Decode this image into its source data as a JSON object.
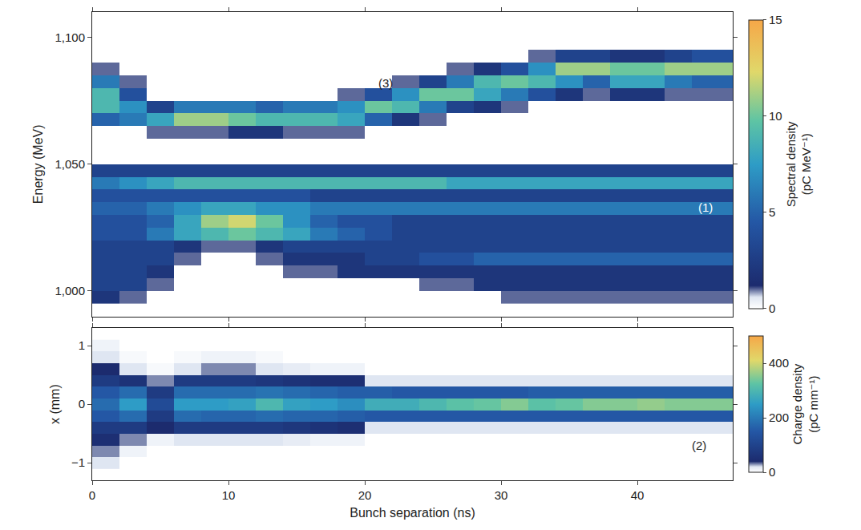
{
  "chart_data": [
    {
      "type": "heatmap",
      "y_label": "Energy (MeV)",
      "z_label": "Spectral density (pC MeV⁻¹)",
      "tick_labels": "y",
      "grid": false,
      "xlim": [
        0,
        47
      ],
      "xticks": [
        0,
        10,
        20,
        30,
        40
      ],
      "ylim": [
        990,
        1110
      ],
      "yticks": [
        {
          "value": 1000,
          "label": "1,000"
        },
        {
          "value": 1050,
          "label": "1,050"
        },
        {
          "value": 1100,
          "label": "1,100"
        }
      ],
      "zlim": [
        0,
        15
      ],
      "zticks": [
        0,
        5,
        10,
        15
      ],
      "x": [
        1,
        3,
        5,
        7,
        9,
        11,
        13,
        15,
        17,
        19,
        21,
        23,
        25,
        27,
        29,
        31,
        33,
        35,
        37,
        39,
        41,
        43,
        45,
        47
      ],
      "y": [
        997.5,
        1002.5,
        1007.5,
        1012.5,
        1017.5,
        1022.5,
        1027.5,
        1032.5,
        1037.5,
        1042.5,
        1047.5,
        1052.5,
        1057.5,
        1062.5,
        1067.5,
        1072.5,
        1077.5,
        1082.5,
        1087.5,
        1092.5,
        1097.5
      ],
      "z": [
        [
          2,
          1,
          0,
          0,
          0,
          0,
          0,
          0,
          0,
          0,
          0,
          0,
          0,
          0,
          0,
          1,
          1,
          1,
          1,
          1,
          1,
          1,
          1,
          1
        ],
        [
          3,
          3,
          1,
          0,
          0,
          0,
          0,
          0,
          0,
          0,
          0,
          0,
          1,
          1,
          2,
          2,
          2,
          2,
          2,
          2,
          2,
          2,
          2,
          2
        ],
        [
          3,
          3,
          2,
          0,
          0,
          0,
          0,
          1,
          1,
          2,
          2,
          2,
          2,
          2,
          2,
          2,
          2,
          2,
          2,
          2,
          2,
          2,
          2,
          2
        ],
        [
          3,
          3,
          3,
          1,
          0,
          0,
          1,
          2,
          2,
          2,
          3,
          3,
          4,
          4,
          5,
          5,
          5,
          5,
          5,
          5,
          5,
          5,
          5,
          5
        ],
        [
          3,
          3,
          3,
          2,
          1,
          1,
          2,
          3,
          3,
          3,
          3,
          3,
          3,
          3,
          3,
          3,
          3,
          3,
          3,
          3,
          3,
          3,
          3,
          3
        ],
        [
          4,
          4,
          6,
          8,
          9,
          10,
          9,
          8,
          6,
          5,
          4,
          3,
          3,
          3,
          3,
          3,
          3,
          3,
          3,
          3,
          3,
          3,
          3,
          3
        ],
        [
          4,
          4,
          5,
          8,
          11,
          12,
          10,
          7,
          5,
          4,
          4,
          3,
          3,
          3,
          3,
          3,
          3,
          3,
          3,
          3,
          3,
          3,
          3,
          3
        ],
        [
          5,
          5,
          6,
          7,
          8,
          8,
          7,
          7,
          6,
          6,
          6,
          6,
          6,
          6,
          6,
          6,
          6,
          6,
          6,
          6,
          6,
          6,
          6,
          6
        ],
        [
          4,
          4,
          4,
          4,
          4,
          4,
          4,
          4,
          3,
          3,
          3,
          3,
          3,
          3,
          3,
          3,
          3,
          3,
          3,
          3,
          3,
          3,
          3,
          3
        ],
        [
          6,
          7,
          8,
          9,
          9,
          9,
          9,
          9,
          9,
          9,
          9,
          9,
          9,
          8,
          8,
          8,
          8,
          8,
          8,
          8,
          8,
          8,
          8,
          8
        ],
        [
          3,
          3,
          3,
          3,
          3,
          3,
          3,
          3,
          3,
          3,
          3,
          3,
          3,
          3,
          3,
          3,
          3,
          3,
          3,
          3,
          3,
          3,
          3,
          3
        ],
        [
          0,
          0,
          0,
          0,
          0,
          0,
          0,
          0,
          0,
          0,
          0,
          0,
          0,
          0,
          0,
          0,
          0,
          0,
          0,
          0,
          0,
          0,
          0,
          0
        ],
        [
          0,
          0,
          0,
          0,
          0,
          0,
          0,
          0,
          0,
          0,
          0,
          0,
          0,
          0,
          0,
          0,
          0,
          0,
          0,
          0,
          0,
          0,
          0,
          0
        ],
        [
          0,
          0,
          1,
          1,
          1,
          2,
          2,
          1,
          1,
          1,
          0,
          0,
          0,
          0,
          0,
          0,
          0,
          0,
          0,
          0,
          0,
          0,
          0,
          0
        ],
        [
          5,
          6,
          8,
          11,
          11,
          10,
          9,
          9,
          9,
          8,
          5,
          2,
          1,
          0,
          0,
          0,
          0,
          0,
          0,
          0,
          0,
          0,
          0,
          0
        ],
        [
          9,
          7,
          3,
          6,
          6,
          6,
          5,
          6,
          6,
          7,
          10,
          9,
          6,
          3,
          2,
          1,
          0,
          0,
          0,
          0,
          0,
          0,
          0,
          0
        ],
        [
          9,
          4,
          0,
          0,
          0,
          0,
          0,
          0,
          0,
          1,
          4,
          7,
          10,
          10,
          8,
          6,
          4,
          2,
          1,
          2,
          2,
          1,
          1,
          1
        ],
        [
          6,
          1,
          0,
          0,
          0,
          0,
          0,
          0,
          0,
          0,
          0,
          1,
          3,
          6,
          9,
          10,
          9,
          7,
          5,
          8,
          8,
          6,
          5,
          5
        ],
        [
          1,
          0,
          0,
          0,
          0,
          0,
          0,
          0,
          0,
          0,
          0,
          0,
          0,
          1,
          2,
          4,
          7,
          11,
          11,
          10,
          10,
          11,
          11,
          11
        ],
        [
          0,
          0,
          0,
          0,
          0,
          0,
          0,
          0,
          0,
          0,
          0,
          0,
          0,
          0,
          0,
          0,
          1,
          3,
          3,
          2,
          2,
          3,
          4,
          4
        ],
        [
          0,
          0,
          0,
          0,
          0,
          0,
          0,
          0,
          0,
          0,
          0,
          0,
          0,
          0,
          0,
          0,
          0,
          0,
          0,
          0,
          0,
          0,
          0,
          0
        ]
      ],
      "annotations": [
        {
          "text": "(1)",
          "x": 45,
          "y": 1033
        },
        {
          "text": "(3)",
          "x": 21.5,
          "y": 1082
        }
      ]
    },
    {
      "type": "heatmap",
      "x_label": "Bunch separation (ns)",
      "y_label": "x (mm)",
      "z_label": "Charge density (pC mm⁻¹)",
      "grid": false,
      "xlim": [
        0,
        47
      ],
      "xticks": [
        0,
        10,
        20,
        30,
        40
      ],
      "ylim": [
        -1.3,
        1.3
      ],
      "yticks": [
        {
          "value": -1,
          "label": "−1"
        },
        0,
        1
      ],
      "zlim": [
        0,
        500
      ],
      "zticks": [
        0,
        200,
        400
      ],
      "x": [
        1,
        3,
        5,
        7,
        9,
        11,
        13,
        15,
        17,
        19,
        21,
        23,
        25,
        27,
        29,
        31,
        33,
        35,
        37,
        39,
        41,
        43,
        45,
        47
      ],
      "y": [
        -1.0,
        -0.8,
        -0.6,
        -0.4,
        -0.2,
        0,
        0.2,
        0.4,
        0.6,
        0.8,
        1.0
      ],
      "z": [
        [
          20,
          0,
          0,
          0,
          0,
          0,
          0,
          0,
          0,
          0,
          0,
          0,
          0,
          0,
          0,
          0,
          0,
          0,
          0,
          0,
          0,
          0,
          0,
          0
        ],
        [
          30,
          10,
          0,
          0,
          0,
          0,
          0,
          0,
          0,
          0,
          0,
          0,
          0,
          0,
          0,
          0,
          0,
          0,
          0,
          0,
          0,
          0,
          0,
          0
        ],
        [
          50,
          30,
          10,
          20,
          20,
          20,
          20,
          15,
          10,
          10,
          0,
          0,
          0,
          0,
          0,
          0,
          0,
          0,
          0,
          0,
          0,
          0,
          0,
          0
        ],
        [
          80,
          80,
          40,
          80,
          80,
          80,
          80,
          70,
          60,
          50,
          20,
          20,
          20,
          20,
          20,
          20,
          20,
          20,
          20,
          20,
          20,
          20,
          20,
          20
        ],
        [
          150,
          180,
          80,
          180,
          170,
          170,
          180,
          170,
          170,
          160,
          150,
          150,
          150,
          150,
          150,
          150,
          150,
          150,
          150,
          150,
          150,
          150,
          150,
          150
        ],
        [
          180,
          250,
          120,
          250,
          250,
          260,
          300,
          260,
          250,
          230,
          280,
          280,
          300,
          320,
          330,
          350,
          320,
          330,
          350,
          350,
          360,
          350,
          350,
          350
        ],
        [
          150,
          180,
          80,
          180,
          180,
          180,
          190,
          180,
          170,
          160,
          160,
          150,
          150,
          150,
          150,
          150,
          160,
          160,
          160,
          160,
          160,
          160,
          160,
          160
        ],
        [
          80,
          60,
          30,
          80,
          80,
          80,
          70,
          60,
          50,
          50,
          20,
          20,
          20,
          20,
          20,
          20,
          20,
          20,
          20,
          20,
          20,
          20,
          20,
          20
        ],
        [
          40,
          20,
          5,
          20,
          30,
          30,
          20,
          15,
          10,
          10,
          0,
          0,
          0,
          0,
          0,
          0,
          0,
          0,
          0,
          0,
          0,
          0,
          0,
          0
        ],
        [
          20,
          5,
          0,
          5,
          10,
          10,
          5,
          0,
          0,
          0,
          0,
          0,
          0,
          0,
          0,
          0,
          0,
          0,
          0,
          0,
          0,
          0,
          0,
          0
        ],
        [
          10,
          0,
          0,
          0,
          0,
          0,
          0,
          0,
          0,
          0,
          0,
          0,
          0,
          0,
          0,
          0,
          0,
          0,
          0,
          0,
          0,
          0,
          0,
          0
        ]
      ],
      "annotations": [
        {
          "text": "(2)",
          "x": 44.5,
          "y": -0.7
        }
      ]
    }
  ]
}
